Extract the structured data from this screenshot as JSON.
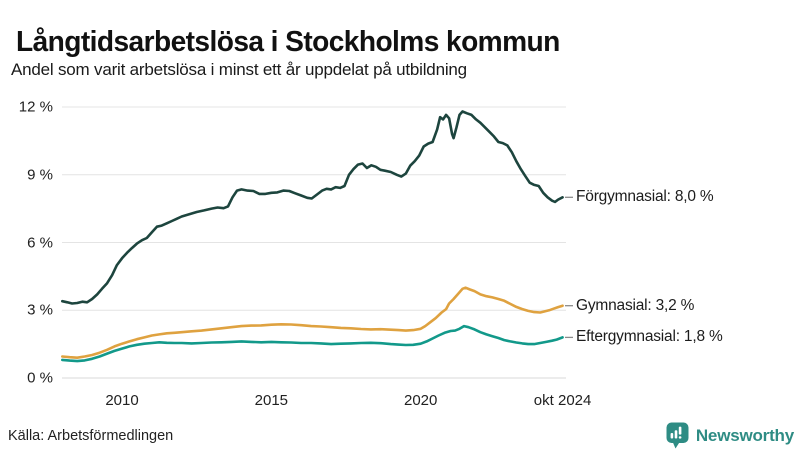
{
  "header": {
    "title": "Långtidsarbetslösa i Stockholms kommun",
    "subtitle": "Andel som varit arbetslösa i minst ett år uppdelat på utbildning"
  },
  "footer": {
    "source": "Källa: Arbetsförmedlingen",
    "brand": "Newsworthy"
  },
  "colors": {
    "forgymnasial": "#1d453e",
    "gymnasial": "#dfa240",
    "eftergymnasial": "#12998a",
    "brand_teal": "#2e8c84",
    "gridline": "#e4e4e4",
    "text": "#212121"
  },
  "chart_data": {
    "type": "line",
    "title": "Långtidsarbetslösa i Stockholms kommun",
    "subtitle": "Andel som varit arbetslösa i minst ett år uppdelat på utbildning",
    "unit": "%",
    "grid": "horizontal",
    "legend_position": "right-end-labels",
    "x_axis": {
      "range": [
        2008,
        2024.75
      ],
      "ticks": [
        {
          "label": "2010",
          "t": 2010
        },
        {
          "label": "2015",
          "t": 2015
        },
        {
          "label": "2020",
          "t": 2020
        },
        {
          "label": "okt 2024",
          "t": 2024.75
        }
      ]
    },
    "y_axis": {
      "range": [
        0,
        12
      ],
      "ticks": [
        {
          "label": "12 %",
          "value": 12
        },
        {
          "label": "9 %",
          "value": 9
        },
        {
          "label": "6 %",
          "value": 6
        },
        {
          "label": "3 %",
          "value": 3
        },
        {
          "label": "0 %",
          "value": 0
        }
      ]
    },
    "series": [
      {
        "id": "forgymnasial",
        "name": "Förgymnasial",
        "label": "Förgymnasial: 8,0 %",
        "end_value": 8.0,
        "color": "#1d453e",
        "points": [
          [
            2008.0,
            3.4
          ],
          [
            2008.17,
            3.35
          ],
          [
            2008.33,
            3.3
          ],
          [
            2008.5,
            3.32
          ],
          [
            2008.67,
            3.38
          ],
          [
            2008.83,
            3.35
          ],
          [
            2009.0,
            3.5
          ],
          [
            2009.17,
            3.7
          ],
          [
            2009.33,
            3.95
          ],
          [
            2009.5,
            4.2
          ],
          [
            2009.67,
            4.55
          ],
          [
            2009.83,
            5.0
          ],
          [
            2010.0,
            5.3
          ],
          [
            2010.17,
            5.55
          ],
          [
            2010.33,
            5.75
          ],
          [
            2010.5,
            5.95
          ],
          [
            2010.67,
            6.1
          ],
          [
            2010.83,
            6.2
          ],
          [
            2011.0,
            6.45
          ],
          [
            2011.17,
            6.7
          ],
          [
            2011.33,
            6.75
          ],
          [
            2011.5,
            6.85
          ],
          [
            2011.67,
            6.95
          ],
          [
            2011.83,
            7.05
          ],
          [
            2012.0,
            7.15
          ],
          [
            2012.25,
            7.25
          ],
          [
            2012.5,
            7.35
          ],
          [
            2012.75,
            7.42
          ],
          [
            2013.0,
            7.5
          ],
          [
            2013.2,
            7.55
          ],
          [
            2013.4,
            7.52
          ],
          [
            2013.55,
            7.6
          ],
          [
            2013.7,
            8.0
          ],
          [
            2013.85,
            8.3
          ],
          [
            2014.0,
            8.35
          ],
          [
            2014.2,
            8.3
          ],
          [
            2014.4,
            8.28
          ],
          [
            2014.6,
            8.15
          ],
          [
            2014.8,
            8.15
          ],
          [
            2015.0,
            8.2
          ],
          [
            2015.2,
            8.22
          ],
          [
            2015.4,
            8.3
          ],
          [
            2015.6,
            8.28
          ],
          [
            2015.8,
            8.18
          ],
          [
            2016.0,
            8.08
          ],
          [
            2016.2,
            7.98
          ],
          [
            2016.35,
            7.95
          ],
          [
            2016.5,
            8.1
          ],
          [
            2016.7,
            8.3
          ],
          [
            2016.85,
            8.38
          ],
          [
            2017.0,
            8.35
          ],
          [
            2017.15,
            8.45
          ],
          [
            2017.3,
            8.42
          ],
          [
            2017.45,
            8.5
          ],
          [
            2017.6,
            9.0
          ],
          [
            2017.75,
            9.25
          ],
          [
            2017.9,
            9.45
          ],
          [
            2018.05,
            9.5
          ],
          [
            2018.2,
            9.3
          ],
          [
            2018.35,
            9.42
          ],
          [
            2018.5,
            9.35
          ],
          [
            2018.65,
            9.22
          ],
          [
            2018.8,
            9.18
          ],
          [
            2019.0,
            9.12
          ],
          [
            2019.2,
            9.0
          ],
          [
            2019.35,
            8.92
          ],
          [
            2019.5,
            9.05
          ],
          [
            2019.65,
            9.4
          ],
          [
            2019.8,
            9.6
          ],
          [
            2019.95,
            9.85
          ],
          [
            2020.1,
            10.25
          ],
          [
            2020.25,
            10.38
          ],
          [
            2020.4,
            10.45
          ],
          [
            2020.55,
            11.0
          ],
          [
            2020.65,
            11.55
          ],
          [
            2020.75,
            11.45
          ],
          [
            2020.85,
            11.65
          ],
          [
            2020.95,
            11.5
          ],
          [
            2021.05,
            10.8
          ],
          [
            2021.1,
            10.62
          ],
          [
            2021.2,
            11.1
          ],
          [
            2021.3,
            11.65
          ],
          [
            2021.4,
            11.8
          ],
          [
            2021.55,
            11.72
          ],
          [
            2021.7,
            11.65
          ],
          [
            2021.85,
            11.45
          ],
          [
            2022.0,
            11.3
          ],
          [
            2022.15,
            11.1
          ],
          [
            2022.3,
            10.9
          ],
          [
            2022.45,
            10.7
          ],
          [
            2022.6,
            10.45
          ],
          [
            2022.75,
            10.4
          ],
          [
            2022.9,
            10.3
          ],
          [
            2023.05,
            10.0
          ],
          [
            2023.2,
            9.6
          ],
          [
            2023.35,
            9.25
          ],
          [
            2023.5,
            8.95
          ],
          [
            2023.65,
            8.65
          ],
          [
            2023.8,
            8.55
          ],
          [
            2023.95,
            8.5
          ],
          [
            2024.1,
            8.2
          ],
          [
            2024.25,
            8.0
          ],
          [
            2024.4,
            7.85
          ],
          [
            2024.5,
            7.8
          ],
          [
            2024.6,
            7.9
          ],
          [
            2024.75,
            8.0
          ]
        ]
      },
      {
        "id": "gymnasial",
        "name": "Gymnasial",
        "label": "Gymnasial: 3,2 %",
        "end_value": 3.2,
        "color": "#dfa240",
        "points": [
          [
            2008.0,
            0.95
          ],
          [
            2008.25,
            0.92
          ],
          [
            2008.5,
            0.9
          ],
          [
            2008.75,
            0.95
          ],
          [
            2009.0,
            1.02
          ],
          [
            2009.25,
            1.12
          ],
          [
            2009.5,
            1.25
          ],
          [
            2009.75,
            1.4
          ],
          [
            2010.0,
            1.52
          ],
          [
            2010.25,
            1.62
          ],
          [
            2010.5,
            1.72
          ],
          [
            2010.75,
            1.8
          ],
          [
            2011.0,
            1.88
          ],
          [
            2011.25,
            1.93
          ],
          [
            2011.5,
            1.98
          ],
          [
            2011.75,
            2.0
          ],
          [
            2012.0,
            2.03
          ],
          [
            2012.33,
            2.07
          ],
          [
            2012.66,
            2.1
          ],
          [
            2013.0,
            2.15
          ],
          [
            2013.33,
            2.2
          ],
          [
            2013.66,
            2.25
          ],
          [
            2014.0,
            2.3
          ],
          [
            2014.33,
            2.32
          ],
          [
            2014.66,
            2.33
          ],
          [
            2015.0,
            2.36
          ],
          [
            2015.33,
            2.38
          ],
          [
            2015.66,
            2.37
          ],
          [
            2016.0,
            2.34
          ],
          [
            2016.33,
            2.3
          ],
          [
            2016.66,
            2.28
          ],
          [
            2017.0,
            2.25
          ],
          [
            2017.33,
            2.22
          ],
          [
            2017.66,
            2.2
          ],
          [
            2018.0,
            2.17
          ],
          [
            2018.33,
            2.15
          ],
          [
            2018.66,
            2.16
          ],
          [
            2019.0,
            2.14
          ],
          [
            2019.25,
            2.12
          ],
          [
            2019.5,
            2.1
          ],
          [
            2019.75,
            2.12
          ],
          [
            2020.0,
            2.18
          ],
          [
            2020.15,
            2.3
          ],
          [
            2020.3,
            2.45
          ],
          [
            2020.5,
            2.65
          ],
          [
            2020.7,
            2.9
          ],
          [
            2020.85,
            3.05
          ],
          [
            2020.95,
            3.3
          ],
          [
            2021.1,
            3.5
          ],
          [
            2021.25,
            3.72
          ],
          [
            2021.4,
            3.95
          ],
          [
            2021.5,
            4.0
          ],
          [
            2021.65,
            3.92
          ],
          [
            2021.8,
            3.85
          ],
          [
            2022.0,
            3.7
          ],
          [
            2022.2,
            3.62
          ],
          [
            2022.4,
            3.57
          ],
          [
            2022.6,
            3.5
          ],
          [
            2022.8,
            3.42
          ],
          [
            2023.0,
            3.28
          ],
          [
            2023.2,
            3.15
          ],
          [
            2023.4,
            3.05
          ],
          [
            2023.6,
            2.97
          ],
          [
            2023.8,
            2.92
          ],
          [
            2024.0,
            2.9
          ],
          [
            2024.15,
            2.95
          ],
          [
            2024.3,
            3.0
          ],
          [
            2024.45,
            3.07
          ],
          [
            2024.6,
            3.14
          ],
          [
            2024.75,
            3.2
          ]
        ]
      },
      {
        "id": "eftergymnasial",
        "name": "Eftergymnasial",
        "label": "Eftergymnasial: 1,8 %",
        "end_value": 1.8,
        "color": "#12998a",
        "points": [
          [
            2008.0,
            0.8
          ],
          [
            2008.25,
            0.77
          ],
          [
            2008.5,
            0.75
          ],
          [
            2008.75,
            0.78
          ],
          [
            2009.0,
            0.85
          ],
          [
            2009.25,
            0.95
          ],
          [
            2009.5,
            1.08
          ],
          [
            2009.75,
            1.2
          ],
          [
            2010.0,
            1.3
          ],
          [
            2010.25,
            1.4
          ],
          [
            2010.5,
            1.47
          ],
          [
            2010.75,
            1.52
          ],
          [
            2011.0,
            1.55
          ],
          [
            2011.25,
            1.58
          ],
          [
            2011.5,
            1.56
          ],
          [
            2011.75,
            1.55
          ],
          [
            2012.0,
            1.55
          ],
          [
            2012.33,
            1.53
          ],
          [
            2012.66,
            1.55
          ],
          [
            2013.0,
            1.57
          ],
          [
            2013.33,
            1.58
          ],
          [
            2013.66,
            1.6
          ],
          [
            2014.0,
            1.62
          ],
          [
            2014.33,
            1.6
          ],
          [
            2014.66,
            1.58
          ],
          [
            2015.0,
            1.6
          ],
          [
            2015.33,
            1.58
          ],
          [
            2015.66,
            1.57
          ],
          [
            2016.0,
            1.55
          ],
          [
            2016.33,
            1.55
          ],
          [
            2016.66,
            1.53
          ],
          [
            2017.0,
            1.5
          ],
          [
            2017.33,
            1.52
          ],
          [
            2017.66,
            1.53
          ],
          [
            2018.0,
            1.55
          ],
          [
            2018.33,
            1.56
          ],
          [
            2018.66,
            1.54
          ],
          [
            2019.0,
            1.5
          ],
          [
            2019.25,
            1.48
          ],
          [
            2019.5,
            1.46
          ],
          [
            2019.75,
            1.47
          ],
          [
            2020.0,
            1.52
          ],
          [
            2020.2,
            1.62
          ],
          [
            2020.4,
            1.75
          ],
          [
            2020.6,
            1.88
          ],
          [
            2020.8,
            2.0
          ],
          [
            2021.0,
            2.08
          ],
          [
            2021.15,
            2.1
          ],
          [
            2021.3,
            2.18
          ],
          [
            2021.45,
            2.3
          ],
          [
            2021.6,
            2.25
          ],
          [
            2021.8,
            2.15
          ],
          [
            2022.0,
            2.03
          ],
          [
            2022.2,
            1.93
          ],
          [
            2022.4,
            1.85
          ],
          [
            2022.6,
            1.77
          ],
          [
            2022.8,
            1.68
          ],
          [
            2023.0,
            1.62
          ],
          [
            2023.2,
            1.57
          ],
          [
            2023.4,
            1.53
          ],
          [
            2023.6,
            1.5
          ],
          [
            2023.8,
            1.5
          ],
          [
            2024.0,
            1.55
          ],
          [
            2024.2,
            1.6
          ],
          [
            2024.4,
            1.65
          ],
          [
            2024.55,
            1.7
          ],
          [
            2024.75,
            1.8
          ]
        ]
      }
    ]
  }
}
